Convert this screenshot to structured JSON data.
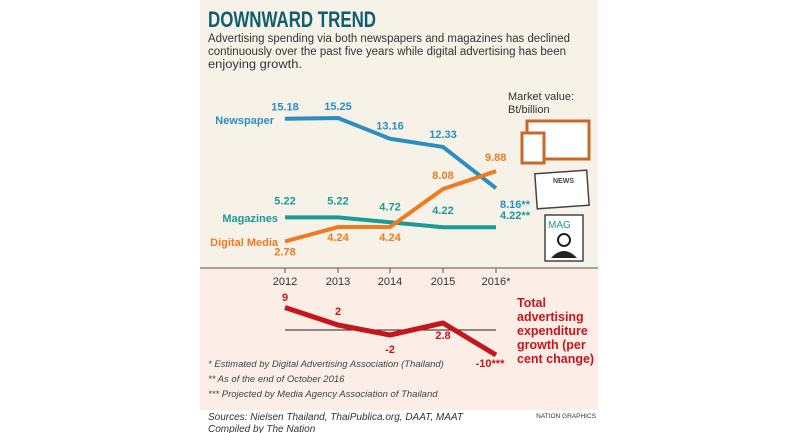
{
  "title": "DOWNWARD TREND",
  "subtitle_lines": [
    "Advertising spending via both newspapers and magazines has declined",
    "continuously over the past five years while digital advertising has been",
    "enjoying growth."
  ],
  "unit_lines": [
    "Market value:",
    "Bt/billion"
  ],
  "icon_labels": {
    "news": "NEWS",
    "mag": "MAG"
  },
  "footnotes": [
    "* Estimated by Digital Advertising Association (Thailand)",
    "** As of the end of October 2016",
    "*** Projected by Media Agency Association of Thailand"
  ],
  "sources": [
    "Sources: Nielsen Thailand, ThaiPublica.org, DAAT, MAAT",
    "Compiled by The Nation"
  ],
  "credit": "NATION GRAPHICS",
  "colors": {
    "newspaper": "#2a8fc0",
    "magazines": "#1c9a96",
    "digital": "#ee7a22",
    "growth": "#c4161c",
    "title": "#0e5e6f",
    "bg_top": "#f6f2e8",
    "bg_bottom": "#fcede6"
  },
  "chart_data": [
    {
      "type": "line",
      "x": [
        "2012",
        "2013",
        "2014",
        "2015",
        "2016*"
      ],
      "series": [
        {
          "name": "Newspaper",
          "values": [
            15.18,
            15.25,
            13.16,
            12.33,
            8.16
          ],
          "labels": [
            "15.18",
            "15.25",
            "13.16",
            "12.33",
            "8.16**"
          ]
        },
        {
          "name": "Magazines",
          "values": [
            5.22,
            5.22,
            4.72,
            4.22,
            4.22
          ],
          "labels": [
            "5.22",
            "5.22",
            "4.72",
            "4.22",
            "4.22**"
          ]
        },
        {
          "name": "Digital Media",
          "values": [
            2.78,
            4.24,
            4.24,
            8.08,
            9.88
          ],
          "labels": [
            "2.78",
            "4.24",
            "4.24",
            "8.08",
            "9.88"
          ]
        }
      ],
      "ylim": [
        0,
        16
      ]
    },
    {
      "type": "line",
      "x": [
        "2012",
        "2013",
        "2014",
        "2015",
        "2016*"
      ],
      "series": [
        {
          "name": "Total advertising expenditure growth (per cent change)",
          "values": [
            9,
            2,
            -2,
            2.8,
            -10
          ],
          "labels": [
            "9",
            "2",
            "-2",
            "2.8",
            "-10***"
          ]
        }
      ],
      "name_lines": [
        "Total",
        "advertising",
        "expenditure",
        "growth (per",
        "cent change)"
      ]
    }
  ]
}
